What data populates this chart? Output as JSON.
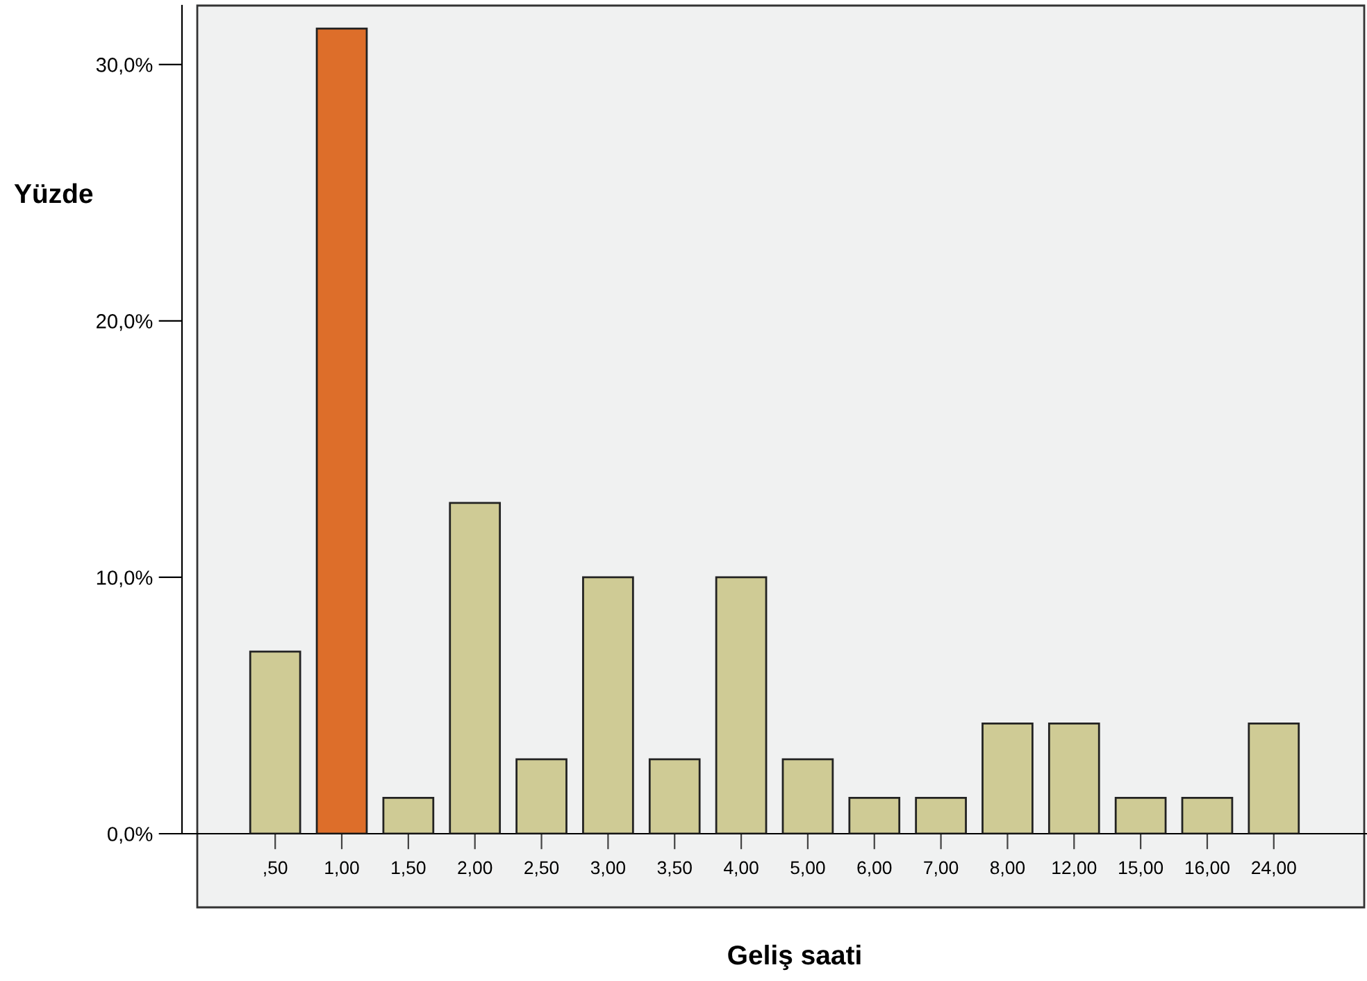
{
  "chart_data": {
    "type": "bar",
    "xlabel": "Geliş saati",
    "ylabel": "Yüzde",
    "categories": [
      ",50",
      "1,00",
      "1,50",
      "2,00",
      "2,50",
      "3,00",
      "3,50",
      "4,00",
      "5,00",
      "6,00",
      "7,00",
      "8,00",
      "12,00",
      "15,00",
      "16,00",
      "24,00"
    ],
    "values": [
      7.1,
      31.4,
      1.4,
      12.9,
      2.9,
      10.0,
      2.9,
      10.0,
      2.9,
      1.4,
      1.4,
      4.3,
      4.3,
      1.4,
      1.4,
      4.3
    ],
    "colors": [
      "#cfcb95",
      "#dd6e2a",
      "#cfcb95",
      "#cfcb95",
      "#cfcb95",
      "#cfcb95",
      "#cfcb95",
      "#cfcb95",
      "#cfcb95",
      "#cfcb95",
      "#cfcb95",
      "#cfcb95",
      "#cfcb95",
      "#cfcb95",
      "#cfcb95",
      "#cfcb95"
    ],
    "ylim": [
      0,
      32.3
    ],
    "yticks": [
      {
        "value": 0,
        "label": "0,0%"
      },
      {
        "value": 10,
        "label": "10,0%"
      },
      {
        "value": 20,
        "label": "20,0%"
      },
      {
        "value": 30,
        "label": "30,0%"
      }
    ],
    "grid": false
  }
}
